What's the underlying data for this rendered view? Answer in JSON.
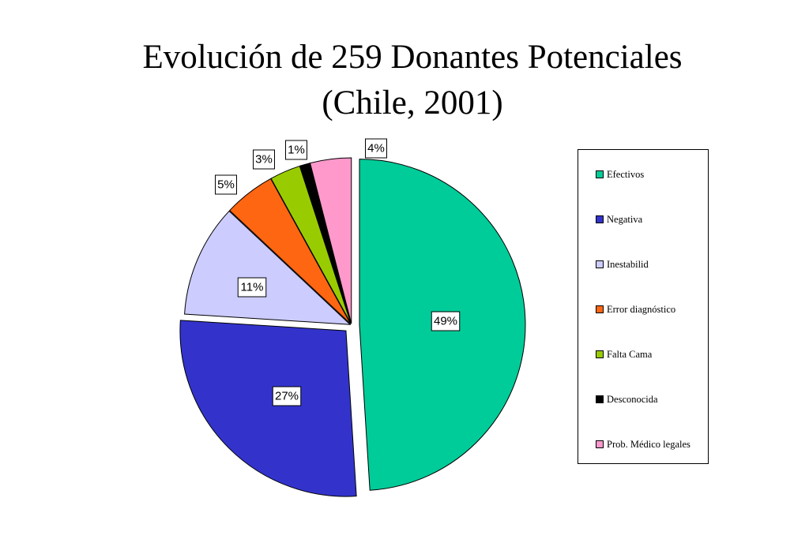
{
  "title": {
    "line1": "Evolución  de 259 Donantes Potenciales",
    "line2": "(Chile, 2001)"
  },
  "chart_data": {
    "type": "pie",
    "title": "Evolución  de 259 Donantes Potenciales (Chile, 2001)",
    "slices": [
      {
        "label": "Efectivos",
        "value": 49,
        "display": "49%",
        "color": "#00cc99"
      },
      {
        "label": "Negativa",
        "value": 27,
        "display": "27%",
        "color": "#3333cc"
      },
      {
        "label": "Inestabilid",
        "value": 11,
        "display": "11%",
        "color": "#ccccff"
      },
      {
        "label": "Error diagnóstico",
        "value": 5,
        "display": "5%",
        "color": "#ff6611"
      },
      {
        "label": "Falta Cama",
        "value": 3,
        "display": "3%",
        "color": "#99cc00"
      },
      {
        "label": "Desconocida",
        "value": 1,
        "display": "1%",
        "color": "#000000"
      },
      {
        "label": "Prob. Médico legales",
        "value": 4,
        "display": "4%",
        "color": "#ff99cc"
      }
    ],
    "legend_position": "right"
  }
}
